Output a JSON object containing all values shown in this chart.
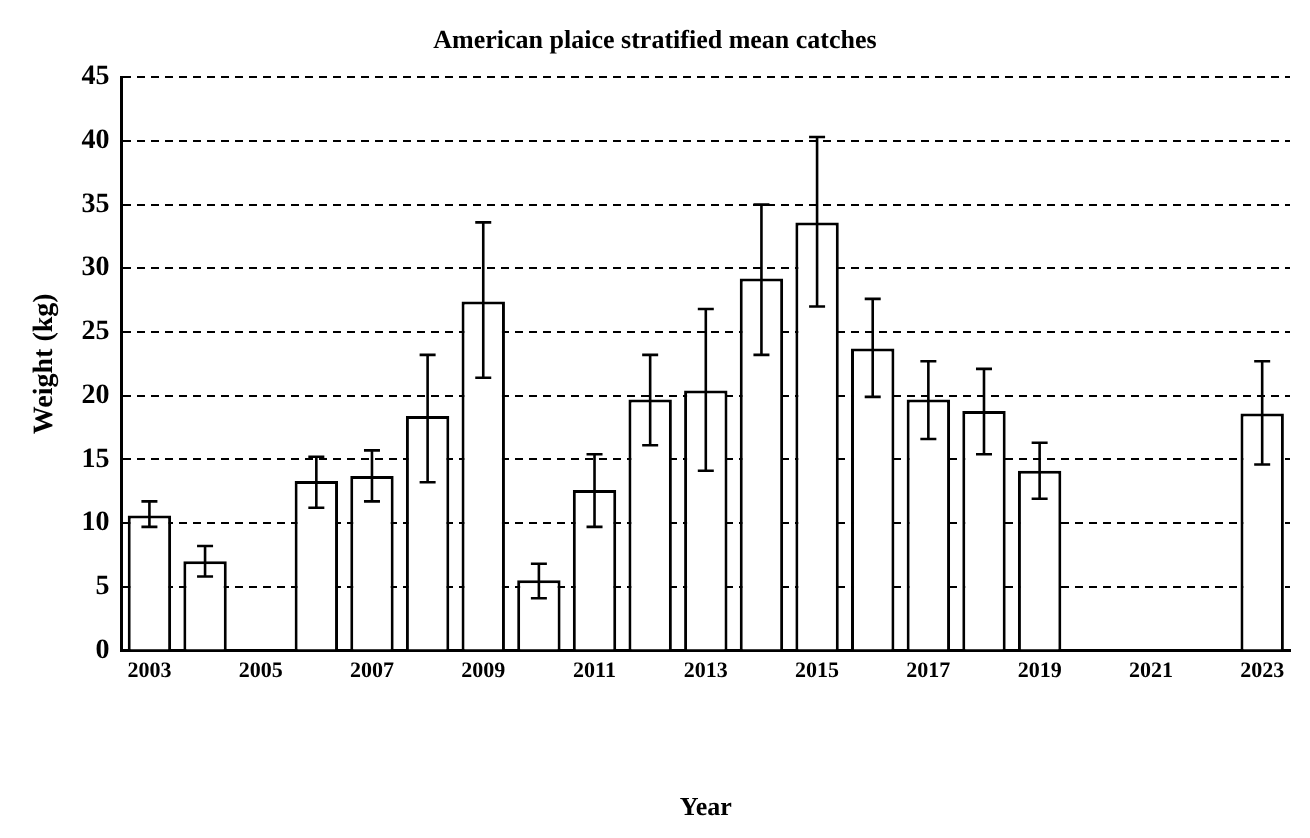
{
  "chart_data": {
    "type": "bar",
    "title": "American plaice stratified mean catches",
    "xlabel": "Year",
    "ylabel": "Weight (kg)",
    "categories": [
      "2003",
      null,
      "2005",
      null,
      "2007",
      null,
      "2009",
      null,
      "2011",
      null,
      "2013",
      null,
      "2015",
      null,
      "2017",
      null,
      "2019",
      null,
      "2021",
      null,
      "2023"
    ],
    "values": [
      10.6,
      7.0,
      null,
      13.3,
      13.7,
      18.4,
      27.4,
      5.5,
      12.6,
      19.7,
      20.4,
      29.2,
      33.6,
      23.7,
      19.7,
      18.8,
      14.1,
      null,
      null,
      null,
      18.6
    ],
    "errors": [
      [
        9.7,
        11.7
      ],
      [
        5.8,
        8.2
      ],
      null,
      [
        11.2,
        15.2
      ],
      [
        11.7,
        15.7
      ],
      [
        13.2,
        23.2
      ],
      [
        21.4,
        33.6
      ],
      [
        4.1,
        6.8
      ],
      [
        9.7,
        15.4
      ],
      [
        16.1,
        23.2
      ],
      [
        14.1,
        26.8
      ],
      [
        23.2,
        35.0
      ],
      [
        27.0,
        40.3
      ],
      [
        19.9,
        27.6
      ],
      [
        16.6,
        22.7
      ],
      [
        15.4,
        22.1
      ],
      [
        11.9,
        16.3
      ],
      null,
      null,
      null,
      [
        14.6,
        22.7
      ]
    ],
    "color": "#ffffff",
    "ylim": [
      0,
      45
    ],
    "yticks": [
      0,
      5,
      10,
      15,
      20,
      25,
      30,
      35,
      40,
      45
    ],
    "grid": "y",
    "legend": false
  }
}
